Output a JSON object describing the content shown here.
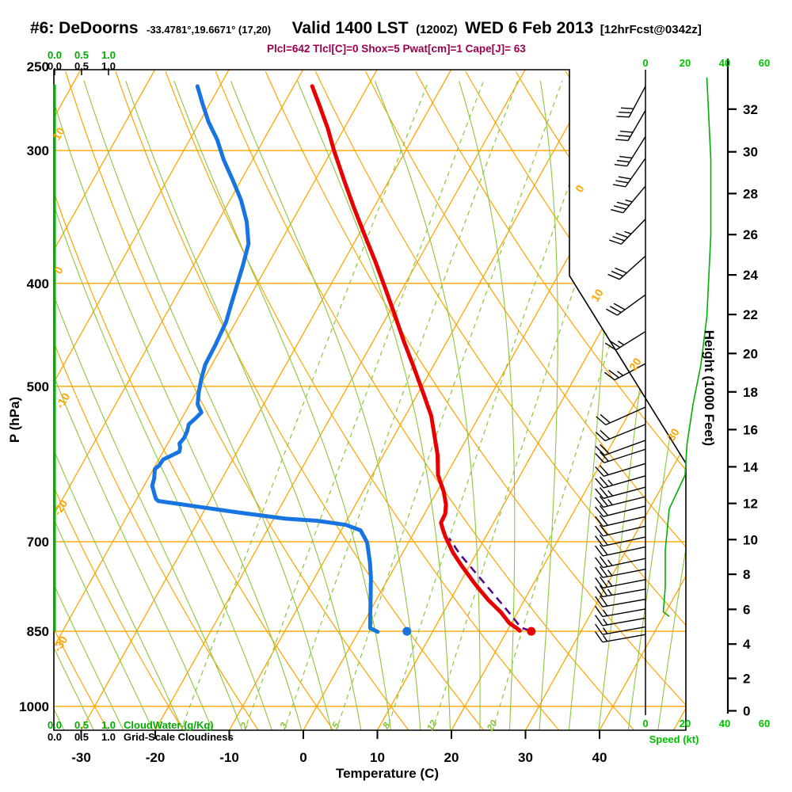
{
  "header": {
    "station": "#6: DeDoorns",
    "coords": "-33.4781°,19.6671° (17,20)",
    "valid": "Valid 1400 LST",
    "valid_zulu": "(1200Z)",
    "date": "WED 6 Feb 2013",
    "fcst_tag": "[12hrFcst@0342z]",
    "params_line": "Plcl=642 Tlcl[C]=0 Shox=5 Pwat[cm]=1 Cape[J]= 63"
  },
  "axes": {
    "pressure_label": "P (hPa)",
    "temp_label": "Temperature (C)",
    "height_label": "Height (1000 Feet)",
    "speed_label": "Speed (kt)",
    "cloudwater_label": "CloudWater (g/Kg)",
    "cloudiness_label": "Grid-Scale Cloudiness",
    "pressure_ticks": [
      250,
      300,
      400,
      500,
      700,
      850,
      1000
    ],
    "temp_ticks": [
      -30,
      -20,
      -10,
      0,
      10,
      20,
      30,
      40
    ],
    "height_ticks": [
      0,
      2,
      4,
      6,
      8,
      10,
      12,
      14,
      16,
      18,
      20,
      22,
      24,
      26,
      28,
      30,
      32
    ],
    "speed_ticks": [
      0,
      20,
      40,
      60
    ],
    "cloud_scale": [
      "0.0",
      "0.5",
      "1.0"
    ],
    "mixing_ratio_labels": [
      1,
      2,
      3,
      5,
      8,
      12,
      20
    ],
    "dry_adiabat_edge_labels": [
      "10",
      "0",
      "-10",
      "-20",
      "-30"
    ],
    "isotherm_edge_labels": [
      "0",
      "10",
      "20",
      "30"
    ]
  },
  "colors": {
    "orange_grid": "#ffa500",
    "green_grid": "#8cc63c",
    "bright_green": "#00b000",
    "temp_trace": "#e80000",
    "dewpoint_trace": "#1874e0",
    "parcel_trace": "#550a8a",
    "param_maroon": "#99004d"
  },
  "chart_data": {
    "type": "line",
    "subtype": "skewt_logp_sounding",
    "pressure_range_hpa": [
      1050,
      250
    ],
    "temp_axis_range_c": [
      -35,
      45
    ],
    "skew": "temperature lines skewed right with height",
    "parameters": {
      "plcl_hpa": 642,
      "tlcl_c": 0,
      "showalter": 5,
      "pwat_cm": 1,
      "cape_j": 63
    },
    "surface": {
      "pressure_hpa": 850,
      "temp_c": 23.3,
      "dewpoint_c": 6.5
    },
    "temperature_profile_p_T": [
      [
        261,
        -47.5
      ],
      [
        271,
        -45.3
      ],
      [
        286,
        -42.2
      ],
      [
        300,
        -39.7
      ],
      [
        321,
        -35.9
      ],
      [
        340,
        -32.6
      ],
      [
        360,
        -29.2
      ],
      [
        381,
        -25.8
      ],
      [
        404,
        -22.4
      ],
      [
        428,
        -19.1
      ],
      [
        453,
        -15.9
      ],
      [
        480,
        -12.5
      ],
      [
        510,
        -9.0
      ],
      [
        533,
        -6.5
      ],
      [
        556,
        -4.6
      ],
      [
        580,
        -2.7
      ],
      [
        606,
        -1.1
      ],
      [
        628,
        0.9
      ],
      [
        646,
        2.2
      ],
      [
        659,
        2.8
      ],
      [
        672,
        2.9
      ],
      [
        681,
        3.6
      ],
      [
        692,
        4.5
      ],
      [
        716,
        6.7
      ],
      [
        738,
        9.0
      ],
      [
        767,
        12.1
      ],
      [
        794,
        15.1
      ],
      [
        816,
        17.8
      ],
      [
        835,
        19.7
      ],
      [
        847,
        21.5
      ],
      [
        849,
        21.7
      ]
    ],
    "dewpoint_profile_p_T": [
      [
        261,
        -63.0
      ],
      [
        271,
        -61.0
      ],
      [
        282,
        -58.8
      ],
      [
        293,
        -56.3
      ],
      [
        306,
        -53.9
      ],
      [
        320,
        -51.1
      ],
      [
        334,
        -48.5
      ],
      [
        350,
        -46.1
      ],
      [
        367,
        -44.2
      ],
      [
        385,
        -43.3
      ],
      [
        402,
        -42.6
      ],
      [
        420,
        -41.9
      ],
      [
        435,
        -41.3
      ],
      [
        458,
        -41.0
      ],
      [
        477,
        -40.9
      ],
      [
        493,
        -40.3
      ],
      [
        508,
        -39.6
      ],
      [
        520,
        -38.9
      ],
      [
        529,
        -37.8
      ],
      [
        535,
        -38.1
      ],
      [
        543,
        -38.6
      ],
      [
        551,
        -38.3
      ],
      [
        559,
        -38.2
      ],
      [
        566,
        -38.4
      ],
      [
        571,
        -38.0
      ],
      [
        576,
        -37.8
      ],
      [
        586,
        -39.4
      ],
      [
        594,
        -39.5
      ],
      [
        598,
        -39.8
      ],
      [
        610,
        -39.2
      ],
      [
        620,
        -38.9
      ],
      [
        631,
        -38.0
      ],
      [
        638,
        -37.4
      ],
      [
        641,
        -36.9
      ],
      [
        649,
        -31.1
      ],
      [
        657,
        -25.3
      ],
      [
        666,
        -18.4
      ],
      [
        669,
        -14.0
      ],
      [
        675,
        -9.8
      ],
      [
        683,
        -7.4
      ],
      [
        701,
        -5.6
      ],
      [
        732,
        -3.7
      ],
      [
        757,
        -2.4
      ],
      [
        798,
        -0.6
      ],
      [
        825,
        0.5
      ],
      [
        844,
        1.3
      ],
      [
        851,
        2.6
      ]
    ],
    "parcel_path_p_T": [
      [
        849,
        23.1
      ],
      [
        843,
        21.6
      ],
      [
        824,
        19.7
      ],
      [
        796,
        16.7
      ],
      [
        769,
        13.7
      ],
      [
        744,
        10.8
      ],
      [
        719,
        7.8
      ],
      [
        695,
        5.2
      ]
    ],
    "wind_speed_profile_p_kt": [
      [
        256,
        31
      ],
      [
        306,
        33
      ],
      [
        360,
        33
      ],
      [
        430,
        31
      ],
      [
        477,
        28
      ],
      [
        520,
        24
      ],
      [
        566,
        21
      ],
      [
        606,
        20
      ],
      [
        652,
        12
      ],
      [
        713,
        10
      ],
      [
        772,
        10
      ],
      [
        815,
        9
      ],
      [
        823,
        12
      ]
    ],
    "wind_barbs": [
      {
        "p": 261,
        "kt": 30,
        "ang": 62
      },
      {
        "p": 275,
        "kt": 30,
        "ang": 60
      },
      {
        "p": 291,
        "kt": 30,
        "ang": 58
      },
      {
        "p": 305,
        "kt": 30,
        "ang": 55
      },
      {
        "p": 324,
        "kt": 35,
        "ang": 50
      },
      {
        "p": 348,
        "kt": 35,
        "ang": 46
      },
      {
        "p": 377,
        "kt": 30,
        "ang": 42
      },
      {
        "p": 410,
        "kt": 30,
        "ang": 36
      },
      {
        "p": 444,
        "kt": 25,
        "ang": 32
      },
      {
        "p": 476,
        "kt": 25,
        "ang": 28
      },
      {
        "p": 523,
        "kt": 20,
        "ang": 24
      },
      {
        "p": 543,
        "kt": 20,
        "ang": 22
      },
      {
        "p": 562,
        "kt": 20,
        "ang": 20
      },
      {
        "p": 573,
        "kt": 20,
        "ang": 18
      },
      {
        "p": 591,
        "kt": 20,
        "ang": 17
      },
      {
        "p": 607,
        "kt": 25,
        "ang": 16
      },
      {
        "p": 622,
        "kt": 25,
        "ang": 15
      },
      {
        "p": 635,
        "kt": 25,
        "ang": 14
      },
      {
        "p": 648,
        "kt": 20,
        "ang": 14
      },
      {
        "p": 663,
        "kt": 20,
        "ang": 13
      },
      {
        "p": 677,
        "kt": 20,
        "ang": 13
      },
      {
        "p": 693,
        "kt": 20,
        "ang": 12
      },
      {
        "p": 708,
        "kt": 20,
        "ang": 12
      },
      {
        "p": 726,
        "kt": 25,
        "ang": 12
      },
      {
        "p": 743,
        "kt": 25,
        "ang": 11
      },
      {
        "p": 760,
        "kt": 25,
        "ang": 11
      },
      {
        "p": 776,
        "kt": 25,
        "ang": 10
      },
      {
        "p": 793,
        "kt": 20,
        "ang": 10
      },
      {
        "p": 810,
        "kt": 15,
        "ang": 10
      },
      {
        "p": 826,
        "kt": 15,
        "ang": 10
      },
      {
        "p": 842,
        "kt": 15,
        "ang": 10
      },
      {
        "p": 856,
        "kt": 15,
        "ang": 10
      }
    ],
    "cloudwater_profile_p_gkg": [
      [
        260,
        0.0
      ],
      [
        850,
        0.0
      ]
    ],
    "grid": {
      "isobars_hpa": [
        300,
        400,
        500,
        700,
        850,
        1000
      ],
      "isotherms_c_step": 10,
      "dry_adiabats_c_step": 10,
      "moist_adiabats_c_step": 4,
      "mixing_ratio_lines_gkg": [
        1,
        2,
        3,
        5,
        8,
        12,
        20
      ]
    }
  }
}
